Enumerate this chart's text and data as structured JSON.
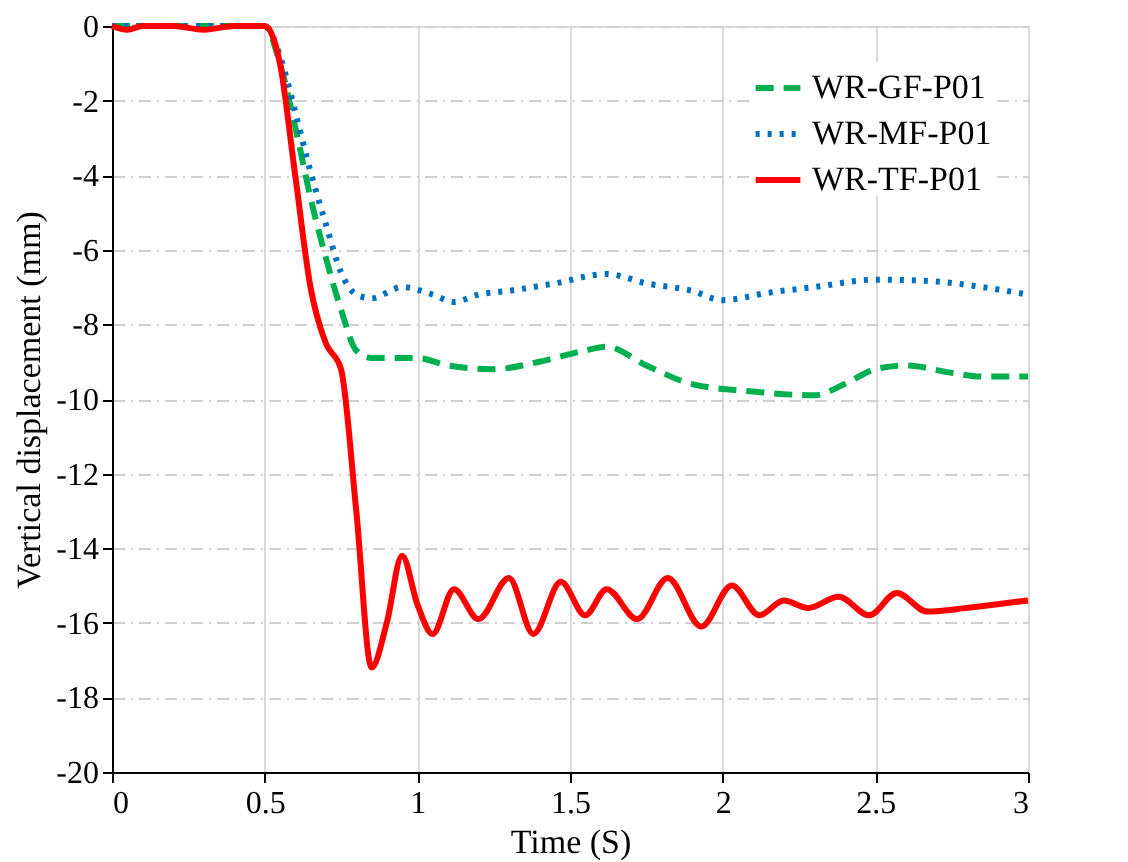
{
  "chart_data": {
    "type": "line",
    "xlabel": "Time (S)",
    "ylabel": "Vertical displacement (mm)",
    "xlim": [
      0,
      3
    ],
    "xticks": [
      0,
      0.5,
      1,
      1.5,
      2,
      2.5,
      3
    ],
    "ylim": [
      -20,
      0
    ],
    "yticks": [
      -20,
      -18,
      -16,
      -14,
      -12,
      -10,
      -8,
      -6,
      -4,
      -2,
      0
    ],
    "grid": true,
    "legend": "top right",
    "marker": "none",
    "series": [
      {
        "name": "WR-GF-P01",
        "color": "#00b050",
        "line_style": "dashed",
        "x": [
          0,
          0.1,
          0.2,
          0.3,
          0.4,
          0.5,
          0.55,
          0.6,
          0.65,
          0.7,
          0.75,
          0.8,
          0.85,
          1.0,
          1.1,
          1.25,
          1.4,
          1.55,
          1.62,
          1.75,
          1.9,
          2.1,
          2.3,
          2.4,
          2.5,
          2.6,
          2.75,
          2.85,
          3.0
        ],
        "values": [
          0,
          0,
          0,
          0,
          0,
          0,
          -1,
          -2.7,
          -4.6,
          -6.2,
          -7.6,
          -8.7,
          -8.9,
          -8.9,
          -9.1,
          -9.2,
          -9.0,
          -8.7,
          -8.6,
          -9.1,
          -9.6,
          -9.8,
          -9.9,
          -9.6,
          -9.2,
          -9.1,
          -9.3,
          -9.4,
          -9.4
        ]
      },
      {
        "name": "WR-MF-P01",
        "color": "#0070c0",
        "line_style": "dotted",
        "x": [
          0,
          0.1,
          0.2,
          0.3,
          0.4,
          0.5,
          0.55,
          0.6,
          0.65,
          0.7,
          0.75,
          0.8,
          0.85,
          0.95,
          1.05,
          1.12,
          1.2,
          1.3,
          1.45,
          1.62,
          1.75,
          1.9,
          2.0,
          2.15,
          2.3,
          2.5,
          2.7,
          2.85,
          3.0
        ],
        "values": [
          0,
          0,
          0,
          0,
          0,
          0,
          -0.8,
          -2.3,
          -3.9,
          -5.3,
          -6.6,
          -7.2,
          -7.3,
          -7.0,
          -7.2,
          -7.4,
          -7.2,
          -7.1,
          -6.9,
          -6.65,
          -6.9,
          -7.1,
          -7.35,
          -7.15,
          -7.0,
          -6.8,
          -6.85,
          -7.0,
          -7.2
        ]
      },
      {
        "name": "WR-TF-P01",
        "color": "#ff0000",
        "line_style": "solid",
        "x": [
          0,
          0.05,
          0.1,
          0.2,
          0.3,
          0.4,
          0.5,
          0.55,
          0.6,
          0.65,
          0.7,
          0.75,
          0.8,
          0.85,
          0.9,
          0.95,
          1.0,
          1.05,
          1.12,
          1.2,
          1.3,
          1.38,
          1.47,
          1.55,
          1.62,
          1.72,
          1.82,
          1.93,
          2.03,
          2.12,
          2.2,
          2.28,
          2.38,
          2.48,
          2.57,
          2.67,
          2.8,
          2.9,
          3.0
        ],
        "values": [
          0,
          -0.1,
          0,
          0,
          -0.1,
          0,
          0,
          -1,
          -4,
          -7,
          -8.5,
          -9.2,
          -13,
          -17.2,
          -16,
          -14.2,
          -15.5,
          -16.3,
          -15.1,
          -15.9,
          -14.8,
          -16.3,
          -14.9,
          -15.8,
          -15.1,
          -15.9,
          -14.8,
          -16.1,
          -15.0,
          -15.8,
          -15.4,
          -15.6,
          -15.3,
          -15.8,
          -15.2,
          -15.7,
          -15.6,
          -15.5,
          -15.4
        ]
      }
    ]
  }
}
